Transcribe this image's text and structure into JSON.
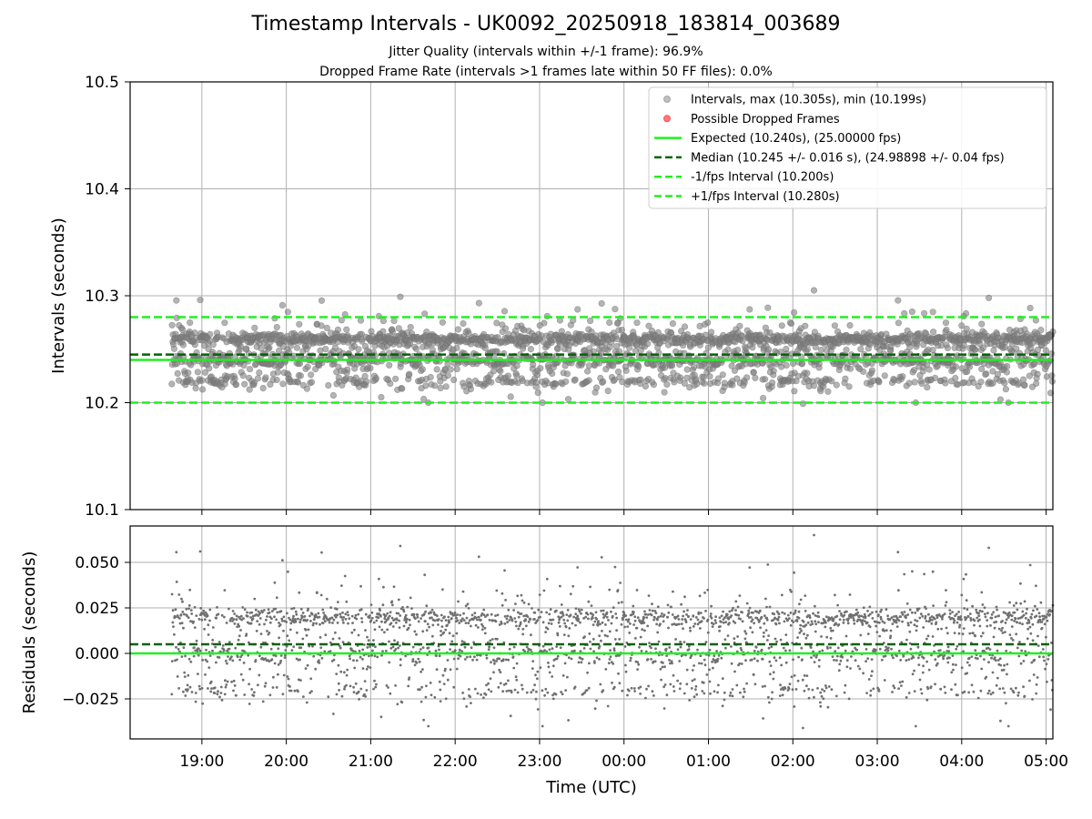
{
  "chart_data": [
    {
      "type": "scatter",
      "title": "Timestamp Intervals - UK0092_20250918_183814_003689",
      "subtitle_lines": [
        "Jitter Quality (intervals within +/-1 frame): 96.9%",
        "Dropped Frame Rate (intervals >1 frames late within 50 FF files): 0.0%"
      ],
      "xlabel": "",
      "ylabel": "Intervals (seconds)",
      "xlim_hours": [
        18.15,
        29.08
      ],
      "ylim": [
        10.1,
        10.5
      ],
      "yticks": [
        10.1,
        10.2,
        10.3,
        10.4,
        10.5
      ],
      "ytick_labels": [
        "10.1",
        "10.2",
        "10.3",
        "10.4",
        "10.5"
      ],
      "grid": true,
      "legend_position": "top-right",
      "series": [
        {
          "name": "Intervals, max (10.305s), min (10.199s)",
          "kind": "scatter",
          "color": "#808080",
          "x_range_hours": [
            18.64,
            29.08
          ],
          "max": 10.305,
          "min": 10.199,
          "typical_levels": [
            10.22,
            10.24,
            10.26
          ]
        },
        {
          "name": "Possible Dropped Frames",
          "kind": "scatter",
          "color": "#ff0000",
          "values": []
        },
        {
          "name": "Expected (10.240s), (25.00000 fps)",
          "kind": "hline",
          "y": 10.24,
          "color": "#22ee22",
          "style": "solid"
        },
        {
          "name": "Median (10.245 +/- 0.016 s), (24.98898 +/- 0.04 fps)",
          "kind": "hline",
          "y": 10.245,
          "color": "#006400",
          "style": "dashed"
        },
        {
          "name": "-1/fps Interval (10.200s)",
          "kind": "hline",
          "y": 10.2,
          "color": "#22ee22",
          "style": "dashed"
        },
        {
          "name": "+1/fps Interval (10.280s)",
          "kind": "hline",
          "y": 10.28,
          "color": "#22ee22",
          "style": "dashed"
        }
      ]
    },
    {
      "type": "scatter",
      "title": "",
      "xlabel": "Time (UTC)",
      "ylabel": "Residuals (seconds)",
      "xlim_hours": [
        18.15,
        29.08
      ],
      "ylim": [
        -0.047,
        0.07
      ],
      "yticks": [
        -0.025,
        0.0,
        0.025,
        0.05
      ],
      "ytick_labels": [
        "−0.025",
        "0.000",
        "0.025",
        "0.050"
      ],
      "xticks_hours": [
        19,
        20,
        21,
        22,
        23,
        24,
        25,
        26,
        27,
        28,
        29
      ],
      "xtick_labels": [
        "19:00",
        "20:00",
        "21:00",
        "22:00",
        "23:00",
        "00:00",
        "01:00",
        "02:00",
        "03:00",
        "04:00",
        "05:00"
      ],
      "grid": true,
      "series": [
        {
          "name": "Residuals",
          "kind": "scatter",
          "color": "#707070",
          "x_range_hours": [
            18.64,
            29.08
          ],
          "max": 0.065,
          "min": -0.041,
          "typical_levels": [
            -0.02,
            0.0,
            0.02
          ]
        },
        {
          "name": "Expected",
          "kind": "hline",
          "y": 0.0,
          "color": "#22ee22",
          "style": "solid"
        },
        {
          "name": "Median",
          "kind": "hline",
          "y": 0.005,
          "color": "#006400",
          "style": "dashed"
        }
      ]
    }
  ]
}
